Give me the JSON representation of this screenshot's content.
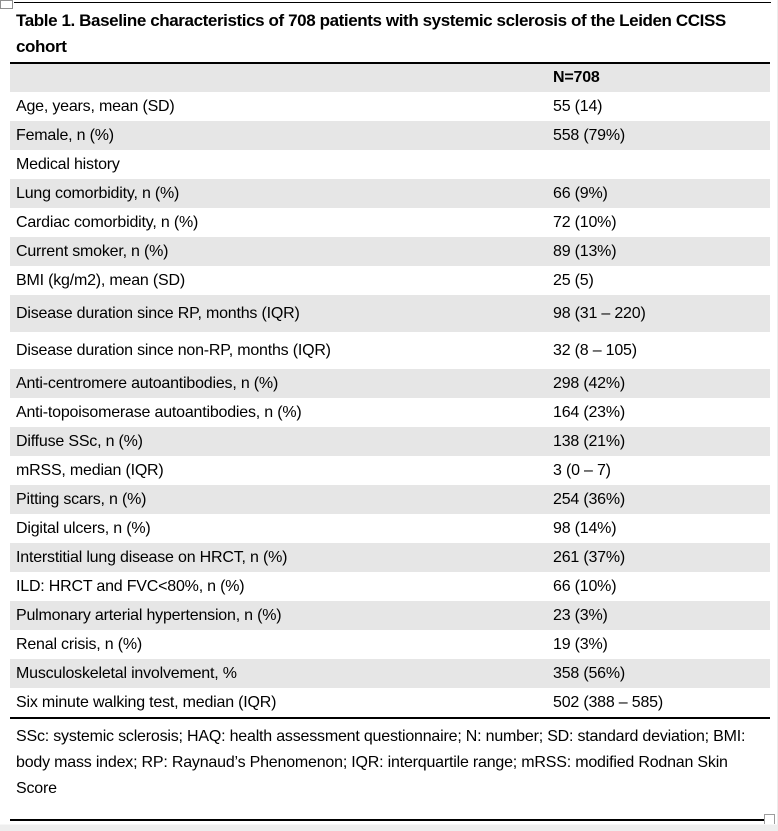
{
  "table": {
    "title": "Table 1. Baseline characteristics of 708 patients with systemic sclerosis of the Leiden CCISS cohort",
    "header": {
      "label": "",
      "value": "N=708"
    },
    "rows": [
      {
        "label": "Age, years, mean (SD)",
        "value": "55 (14)",
        "shaded": false,
        "tall": false
      },
      {
        "label": "Female, n (%)",
        "value": "558 (79%)",
        "shaded": true,
        "tall": false
      },
      {
        "label": "Medical history",
        "value": "",
        "shaded": false,
        "tall": false
      },
      {
        "label": "Lung comorbidity, n (%)",
        "value": "66 (9%)",
        "shaded": true,
        "tall": false
      },
      {
        "label": "Cardiac comorbidity, n (%)",
        "value": "72 (10%)",
        "shaded": false,
        "tall": false
      },
      {
        "label": "Current smoker, n (%)",
        "value": "89 (13%)",
        "shaded": true,
        "tall": false
      },
      {
        "label": "BMI (kg/m2), mean (SD)",
        "value": "25 (5)",
        "shaded": false,
        "tall": false
      },
      {
        "label": "Disease duration since RP, months (IQR)",
        "value": "98 (31 – 220)",
        "shaded": true,
        "tall": true
      },
      {
        "label": "Disease duration since non-RP, months (IQR)",
        "value": "32 (8 – 105)",
        "shaded": false,
        "tall": true
      },
      {
        "label": "Anti-centromere autoantibodies, n (%)",
        "value": "298 (42%)",
        "shaded": true,
        "tall": false
      },
      {
        "label": "Anti-topoisomerase autoantibodies, n (%)",
        "value": "164 (23%)",
        "shaded": false,
        "tall": false
      },
      {
        "label": "Diffuse SSc, n (%)",
        "value": "138 (21%)",
        "shaded": true,
        "tall": false
      },
      {
        "label": "mRSS, median (IQR)",
        "value": "3 (0 – 7)",
        "shaded": false,
        "tall": false
      },
      {
        "label": "Pitting scars, n (%)",
        "value": "254 (36%)",
        "shaded": true,
        "tall": false
      },
      {
        "label": "Digital ulcers, n (%)",
        "value": "98 (14%)",
        "shaded": false,
        "tall": false
      },
      {
        "label": "Interstitial lung disease on HRCT, n (%)",
        "value": "261 (37%)",
        "shaded": true,
        "tall": false
      },
      {
        "label": "ILD: HRCT and FVC<80%, n (%)",
        "value": "66 (10%)",
        "shaded": false,
        "tall": false
      },
      {
        "label": "Pulmonary arterial hypertension, n (%)",
        "value": "23 (3%)",
        "shaded": true,
        "tall": false
      },
      {
        "label": "Renal crisis, n (%)",
        "value": "19 (3%)",
        "shaded": false,
        "tall": false
      },
      {
        "label": "Musculoskeletal involvement, %",
        "value": "358 (56%)",
        "shaded": true,
        "tall": false
      },
      {
        "label": "Six minute walking test, median (IQR)",
        "value": "502 (388 – 585)",
        "shaded": false,
        "tall": false
      }
    ],
    "footnote": "SSc: systemic sclerosis; HAQ: health assessment questionnaire; N: number; SD: standard deviation; BMI: body mass index; RP: Raynaud’s Phenomenon; IQR: interquartile range; mRSS: modified Rodnan Skin Score"
  },
  "colors": {
    "row_shading": "#e6e6e6",
    "border": "#000000",
    "scrollbar_track": "#eeeeee"
  }
}
